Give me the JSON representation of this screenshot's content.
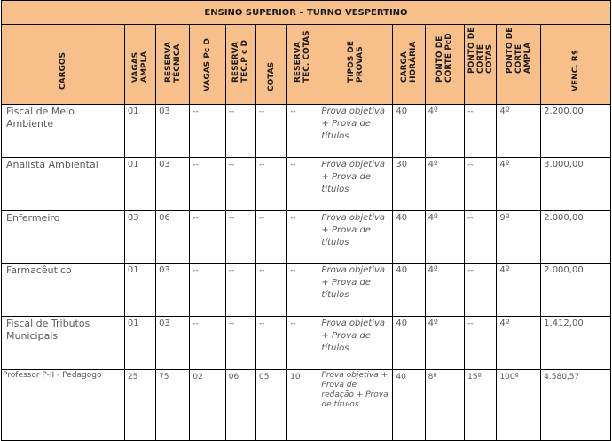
{
  "title": "ENSINO SUPERIOR – TURNO VESPERTINO",
  "headers": {
    "cargos": [
      "CARGOS"
    ],
    "vagas_ampla": [
      "VAGAS",
      "AMPLA"
    ],
    "reserva_tecnica": [
      "RESERVA",
      "TÉCNICA"
    ],
    "vagas_pcd": [
      "VAGAS Pc D"
    ],
    "reserva_tec_pcd": [
      "RESERVA",
      "TEC.P c D"
    ],
    "cotas": [
      "COTAS"
    ],
    "reserva_tec_cotas": [
      "RESERVA",
      "TEC. COTAS"
    ],
    "tipos_provas": [
      "TIPOS DE",
      "PROVAS"
    ],
    "carga_horaria": [
      "CARGA",
      "HORÁRIA"
    ],
    "ponto_corte_pcd": [
      "PONTO DE",
      "CORTE PcD"
    ],
    "ponto_corte_cotas": [
      "PONTO DE",
      "CORTE",
      "COTAS"
    ],
    "ponto_corte_ampla": [
      "PONTO DE",
      "CORTE",
      "AMPLA"
    ],
    "venc": [
      "VENC. R$"
    ]
  },
  "rows": [
    {
      "cargo": "Fiscal de Meio Ambiente",
      "vagas_ampla": "01",
      "reserva_tecnica": "03",
      "vagas_pcd": "--",
      "reserva_tec_pcd": "--",
      "cotas": "--",
      "reserva_tec_cotas": "--",
      "provas": "Prova objetiva + Prova de títulos",
      "carga": "40",
      "corte_pcd": "4º",
      "corte_cotas": "--",
      "corte_ampla": "4º",
      "venc": "2.200,00"
    },
    {
      "cargo": "Analista Ambiental",
      "vagas_ampla": "01",
      "reserva_tecnica": "03",
      "vagas_pcd": "--",
      "reserva_tec_pcd": "--",
      "cotas": "--",
      "reserva_tec_cotas": "--",
      "provas": "Prova objetiva + Prova de títulos",
      "carga": "30",
      "corte_pcd": "4º",
      "corte_cotas": "--",
      "corte_ampla": "4º",
      "venc": "3.000,00"
    },
    {
      "cargo": "Enfermeiro",
      "vagas_ampla": "03",
      "reserva_tecnica": "06",
      "vagas_pcd": "--",
      "reserva_tec_pcd": "--",
      "cotas": "--",
      "reserva_tec_cotas": "--",
      "provas": "Prova objetiva + Prova de títulos",
      "carga": "40",
      "corte_pcd": "4º",
      "corte_cotas": "--",
      "corte_ampla": "9º",
      "venc": "2.000,00"
    },
    {
      "cargo": "Farmacêutico",
      "vagas_ampla": "01",
      "reserva_tecnica": "03",
      "vagas_pcd": "--",
      "reserva_tec_pcd": "--",
      "cotas": "--",
      "reserva_tec_cotas": "--",
      "provas": "Prova objetiva + Prova de títulos",
      "carga": "40",
      "corte_pcd": "4º",
      "corte_cotas": "--",
      "corte_ampla": "4º",
      "venc": "2.000,00"
    },
    {
      "cargo": "Fiscal de Tributos Municipais",
      "vagas_ampla": "01",
      "reserva_tecnica": "03",
      "vagas_pcd": "--",
      "reserva_tec_pcd": "--",
      "cotas": "--",
      "reserva_tec_cotas": "--",
      "provas": "Prova objetiva + Prova de títulos",
      "carga": "40",
      "corte_pcd": "4º",
      "corte_cotas": "--",
      "corte_ampla": "4º",
      "venc": "1.412,00"
    },
    {
      "cargo": "Professor P-II - Pedagogo",
      "vagas_ampla": "25",
      "reserva_tecnica": "75",
      "vagas_pcd": "02",
      "reserva_tec_pcd": "06",
      "cotas": "05",
      "reserva_tec_cotas": "10",
      "provas": "Prova objetiva + Prova de redação + Prova de títulos",
      "carga": "40",
      "corte_pcd": "8º",
      "corte_cotas": "15º.",
      "corte_ampla": "100º",
      "venc": "4.580,57"
    }
  ]
}
